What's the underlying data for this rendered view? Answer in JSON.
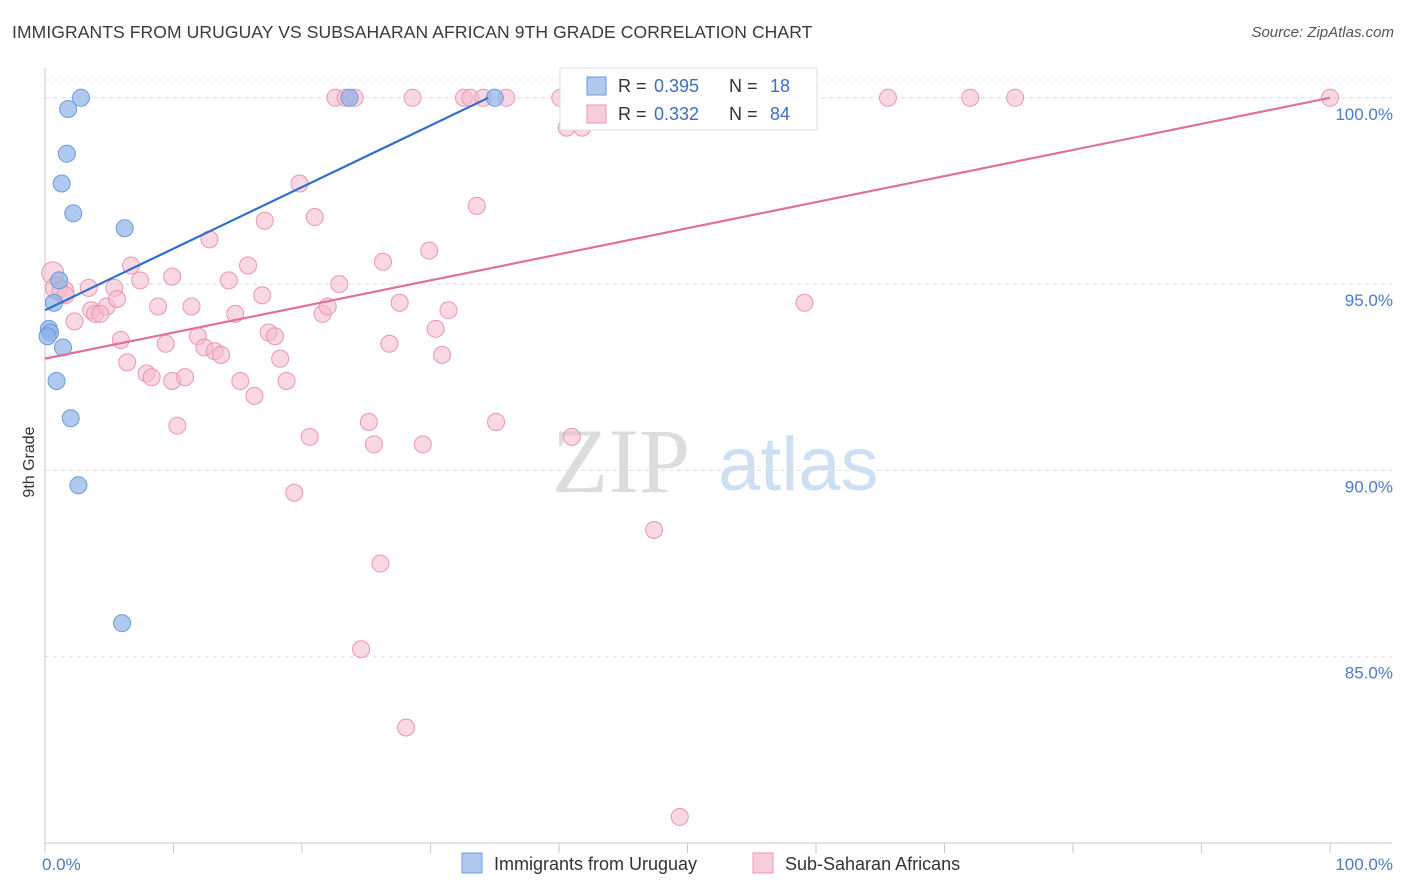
{
  "title": "IMMIGRANTS FROM URUGUAY VS SUBSAHARAN AFRICAN 9TH GRADE CORRELATION CHART",
  "source": "Source: ZipAtlas.com",
  "watermark": {
    "zip": "ZIP",
    "atlas": "atlas"
  },
  "chart_data": {
    "type": "scatter",
    "ylabel": "9th Grade",
    "xlim": [
      0,
      100
    ],
    "ylim": [
      80.0,
      100.8
    ],
    "x_tick_labels": [
      "0.0%",
      "100.0%"
    ],
    "y_ticks": [
      {
        "value": 100.0,
        "label": "100.0%"
      },
      {
        "value": 95.0,
        "label": "95.0%"
      },
      {
        "value": 90.0,
        "label": "90.0%"
      },
      {
        "value": 85.0,
        "label": "85.0%"
      }
    ],
    "grid": true,
    "legend": {
      "placement": "top-center",
      "rows": [
        {
          "r_label": "R =",
          "r_value": "0.395",
          "n_label": "N =",
          "n_value": "18"
        },
        {
          "r_label": "R =",
          "r_value": "0.332",
          "n_label": "N =",
          "n_value": "84"
        }
      ]
    },
    "series": [
      {
        "name": "Immigrants from Uruguay",
        "color": "#8fb4e8",
        "stroke": "#6d9ad8",
        "line_color": "#2f6fcc",
        "trend": {
          "x": [
            0.0,
            34.5
          ],
          "y": [
            94.3,
            100.0
          ]
        },
        "points": [
          [
            2.8,
            100.0
          ],
          [
            1.8,
            99.7
          ],
          [
            1.7,
            98.5
          ],
          [
            1.3,
            97.7
          ],
          [
            2.2,
            96.9
          ],
          [
            6.2,
            96.5
          ],
          [
            1.1,
            95.1
          ],
          [
            0.7,
            94.5
          ],
          [
            0.3,
            93.8
          ],
          [
            0.4,
            93.7
          ],
          [
            1.4,
            93.3
          ],
          [
            0.9,
            92.4
          ],
          [
            2.0,
            91.4
          ],
          [
            2.6,
            89.6
          ],
          [
            6.0,
            85.9
          ],
          [
            23.7,
            100.0
          ],
          [
            35.0,
            100.0
          ],
          [
            0.2,
            93.6
          ]
        ]
      },
      {
        "name": "Sub-Saharan Africans",
        "color": "#f5b8cc",
        "stroke": "#e997b2",
        "line_color": "#e0719a",
        "trend": {
          "x": [
            0.0,
            100.0
          ],
          "y": [
            93.0,
            100.0
          ]
        },
        "points": [
          [
            0.6,
            95.3
          ],
          [
            0.9,
            94.9
          ],
          [
            1.4,
            94.8
          ],
          [
            2.3,
            94.0
          ],
          [
            3.4,
            94.9
          ],
          [
            3.6,
            94.3
          ],
          [
            3.9,
            94.2
          ],
          [
            4.8,
            94.4
          ],
          [
            5.4,
            94.9
          ],
          [
            5.6,
            94.6
          ],
          [
            5.9,
            93.5
          ],
          [
            6.4,
            92.9
          ],
          [
            6.7,
            95.5
          ],
          [
            7.4,
            95.1
          ],
          [
            7.9,
            92.6
          ],
          [
            8.3,
            92.5
          ],
          [
            8.8,
            94.4
          ],
          [
            9.4,
            93.4
          ],
          [
            9.9,
            92.4
          ],
          [
            10.3,
            91.2
          ],
          [
            10.9,
            92.5
          ],
          [
            11.4,
            94.4
          ],
          [
            11.9,
            93.6
          ],
          [
            12.4,
            93.3
          ],
          [
            12.8,
            96.2
          ],
          [
            13.2,
            93.2
          ],
          [
            13.7,
            93.1
          ],
          [
            14.3,
            95.1
          ],
          [
            14.8,
            94.2
          ],
          [
            15.2,
            92.4
          ],
          [
            15.8,
            95.5
          ],
          [
            16.3,
            92.0
          ],
          [
            17.1,
            96.7
          ],
          [
            17.4,
            93.7
          ],
          [
            17.9,
            93.6
          ],
          [
            18.3,
            93.0
          ],
          [
            18.8,
            92.4
          ],
          [
            19.4,
            89.4
          ],
          [
            19.8,
            97.7
          ],
          [
            20.6,
            90.9
          ],
          [
            21.0,
            96.8
          ],
          [
            21.6,
            94.2
          ],
          [
            22.0,
            94.4
          ],
          [
            22.6,
            100.0
          ],
          [
            22.9,
            95.0
          ],
          [
            23.4,
            100.0
          ],
          [
            24.1,
            100.0
          ],
          [
            24.6,
            85.2
          ],
          [
            25.2,
            91.3
          ],
          [
            25.6,
            90.7
          ],
          [
            26.1,
            87.5
          ],
          [
            26.3,
            95.6
          ],
          [
            26.8,
            93.4
          ],
          [
            27.6,
            94.5
          ],
          [
            28.1,
            83.1
          ],
          [
            28.6,
            100.0
          ],
          [
            29.4,
            90.7
          ],
          [
            29.9,
            95.9
          ],
          [
            30.4,
            93.8
          ],
          [
            30.9,
            93.1
          ],
          [
            31.4,
            94.3
          ],
          [
            32.6,
            100.0
          ],
          [
            33.1,
            100.0
          ],
          [
            33.6,
            97.1
          ],
          [
            34.1,
            100.0
          ],
          [
            35.1,
            91.3
          ],
          [
            35.9,
            100.0
          ],
          [
            40.1,
            100.0
          ],
          [
            40.6,
            99.2
          ],
          [
            41.0,
            90.9
          ],
          [
            41.8,
            99.2
          ],
          [
            44.6,
            99.6
          ],
          [
            47.4,
            88.4
          ],
          [
            49.4,
            80.7
          ],
          [
            56.6,
            100.0
          ],
          [
            59.1,
            94.5
          ],
          [
            65.6,
            100.0
          ],
          [
            72.0,
            100.0
          ],
          [
            75.5,
            100.0
          ],
          [
            100.0,
            100.0
          ],
          [
            1.6,
            94.7
          ],
          [
            4.3,
            94.2
          ],
          [
            9.9,
            95.2
          ],
          [
            16.9,
            94.7
          ]
        ]
      }
    ]
  }
}
